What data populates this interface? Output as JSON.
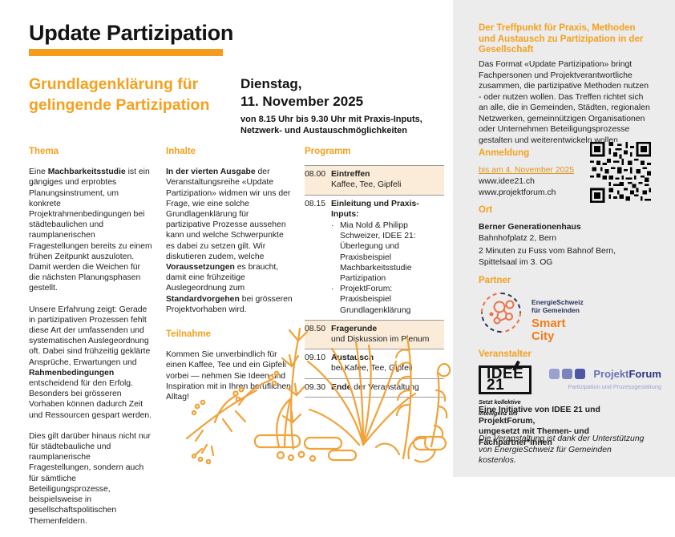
{
  "accent": "#F59C1C",
  "header": {
    "title": "Update Partizipation",
    "subtitle": "Grundlagenklärung für\ngelingende Partizipation",
    "date_main": "Dienstag,\n11. November 2025",
    "date_details": "von 8.15 Uhr bis 9.30 Uhr mit Praxis-Inputs,\nNetzwerk- und Austauschmöglichkeiten"
  },
  "columns": {
    "thema": {
      "heading": "Thema",
      "p1": [
        {
          "t": "Eine "
        },
        {
          "t": "Machbarkeitsstudie",
          "b": true
        },
        {
          "t": " ist ein gängiges und erprobtes Planungsinstrument, um konkrete Projektrahmenbedingungen bei städtebaulichen und raumplanerischen Fragestellungen bereits zu einem frühen Zeitpunkt auszuloten. Damit werden die Weichen für die nächsten Planungsphasen gestellt."
        }
      ],
      "p2": [
        {
          "t": "Unsere Erfahrung zeigt: Gerade in partizipativen Prozessen fehlt diese Art der umfassenden und systematischen Auslegeordnung oft. Dabei sind frühzeitig geklärte Ansprüche, Erwartungen und "
        },
        {
          "t": "Rahmenbedingungen",
          "b": true
        },
        {
          "t": " entscheidend für den Erfolg. Besonders bei grösseren Vorhaben können dadurch Zeit und Ressourcen gespart werden."
        }
      ],
      "p3": "Dies gilt darüber hinaus nicht nur für städtebauliche und raumplanerische Fragestellungen, sondern auch für sämtliche Beteiligungsprozesse, beispielsweise in gesellschaftspolitischen Themenfeldern."
    },
    "inhalte": {
      "heading": "Inhalte",
      "p1": [
        {
          "t": "In der vierten Ausgabe",
          "b": true
        },
        {
          "t": " der Veranstaltungsreihe «Update Partizipation» widmen wir uns der Frage, wie eine solche Grundlagenklärung für partizipative Prozesse aussehen kann und welche Schwerpunkte es dabei zu setzen gilt. Wir diskutieren zudem, welche "
        },
        {
          "t": "Voraussetzungen",
          "b": true
        },
        {
          "t": " es braucht, damit eine frühzeitige Auslegeordnung zum "
        },
        {
          "t": "Standardvorgehen",
          "b": true
        },
        {
          "t": " bei grösseren Projektvorhaben wird."
        }
      ]
    },
    "teilnahme": {
      "heading": "Teilnahme",
      "p1": "Kommen Sie unverbindlich für einen Kaffee, Tee und ein Gipfeli vorbei — nehmen Sie Ideen und Inspiration mit in Ihren beruflichen Alltag!"
    },
    "programm": {
      "heading": "Programm",
      "bullet_char": "·",
      "rows": [
        {
          "time": "08.00",
          "content": [
            {
              "t": "Eintreffen",
              "b": true
            },
            {
              "t": "\nKaffee, Tee, Gipfeli"
            }
          ]
        },
        {
          "time": "08.15",
          "content": [
            {
              "t": "Einleitung und Praxis-Inputs:",
              "b": true
            }
          ],
          "bullets": [
            "Mia Nold & Philipp Schweizer, IDEE 21: Überlegung und Praxisbeispiel Machbarkeitsstudie Partizipation",
            "ProjektForum: Praxisbeispiel Grundlagenklärung"
          ]
        },
        {
          "time": "08.50",
          "content": [
            {
              "t": "Fragerunde",
              "b": true
            },
            {
              "t": "\nund Diskussion im Plenum"
            }
          ]
        },
        {
          "time": "09.10",
          "content": [
            {
              "t": "Austausch",
              "b": true
            },
            {
              "t": "\nbei Kafee, Tee, Gipfeli"
            }
          ]
        },
        {
          "time": "09.30",
          "content": [
            {
              "t": "Ende",
              "b": true
            },
            {
              "t": " der Veranstaltung"
            }
          ]
        }
      ]
    }
  },
  "sidebar": {
    "intro_heading": "Der Treffpunkt für Praxis, Methoden und Austausch zu Partizipation in der Gesellschaft",
    "intro_text": "Das Format «Update Partizipation» bringt Fachpersonen und Projektverantwortliche zusammen, die partizipative Methoden nutzen - oder nutzen wollen. Das Treffen richtet sich an alle, die in Gemeinden, Städten, regionalen Netzwerken, gemeinnützigen Organisationen oder Unternehmen Beteiligungsprozesse gestalten und weiterentwickeln wollen.",
    "anmeldung": {
      "heading": "Anmeldung",
      "deadline_link": "bis am 4. November 2025",
      "url_idee21": "www.idee21.ch",
      "url_projektforum": "www.projektforum.ch"
    },
    "ort": {
      "heading": "Ort",
      "venue": "Berner Generationenhaus",
      "address": "Bahnhofplatz 2, Bern",
      "directions": "2 Minuten zu Fuss vom Bahnof Bern,\nSpittelsaal im 3. OG"
    },
    "partner": {
      "heading": "Partner",
      "logo_text": "EnergieSchweiz\nfür Gemeinden",
      "logo_brand": "Smart\nCity"
    },
    "veranstalter": {
      "heading": "Veranstalter",
      "idee21_name": "IDEE 21",
      "idee21_tagline": "Setzt kollektive Intelligenz um",
      "pf_name_1": "Projekt",
      "pf_name_2": "Forum",
      "pf_tagline": "Partizipation und Prozessgestaltung"
    },
    "initiative_text": "Eine Initiative von IDEE 21 und ProjektForum,\numgesetzt mit Themen- und Fachpartner*innen",
    "support_text": "Die Veranstaltung ist dank der Unterstützung\nvon EnergieSchweiz für Gemeinden kostenlos."
  }
}
